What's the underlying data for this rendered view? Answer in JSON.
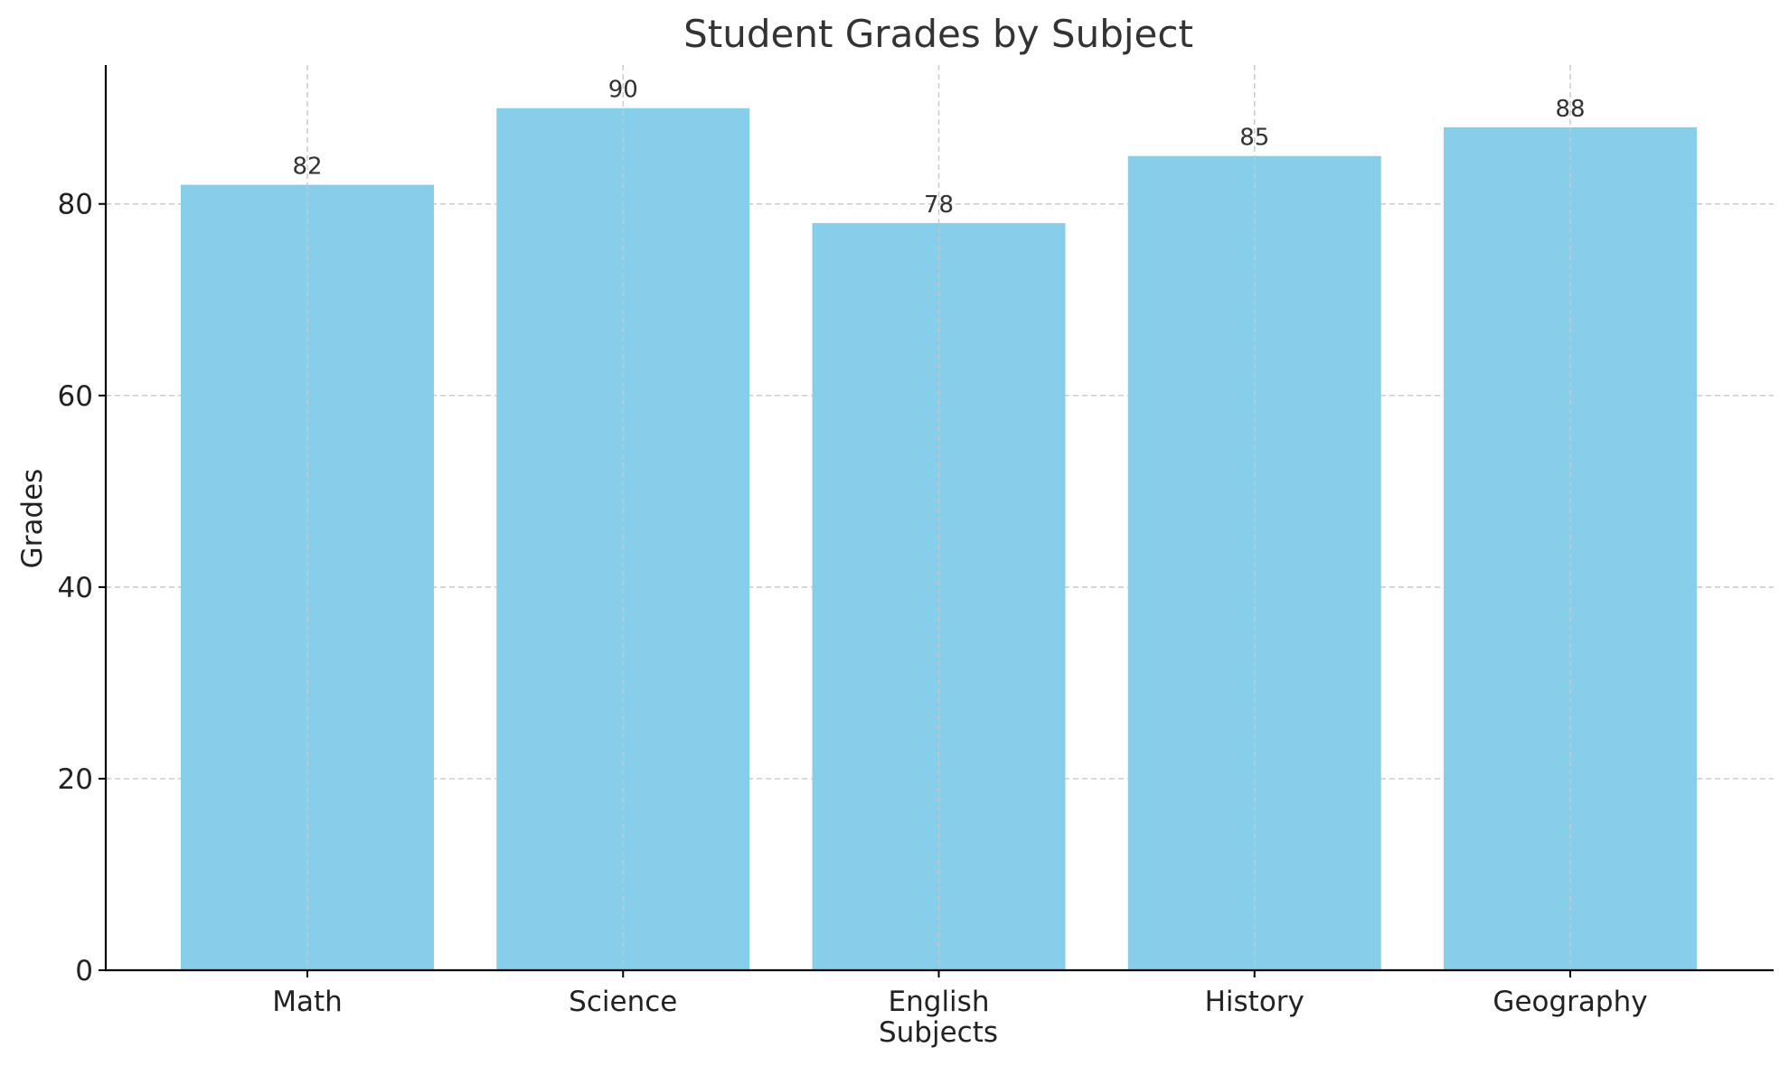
{
  "chart_data": {
    "type": "bar",
    "title": "Student Grades by Subject",
    "xlabel": "Subjects",
    "ylabel": "Grades",
    "categories": [
      "Math",
      "Science",
      "English",
      "History",
      "Geography"
    ],
    "values": [
      82,
      90,
      78,
      85,
      88
    ],
    "data_labels": [
      "82",
      "90",
      "78",
      "85",
      "88"
    ],
    "ylim": [
      0,
      94.5
    ],
    "yticks": [
      0,
      20,
      40,
      60,
      80
    ],
    "ytick_labels": [
      "0",
      "20",
      "40",
      "60",
      "80"
    ],
    "grid": true,
    "bar_color": "#87CEEB",
    "grid_color": "#c8c8c8"
  }
}
